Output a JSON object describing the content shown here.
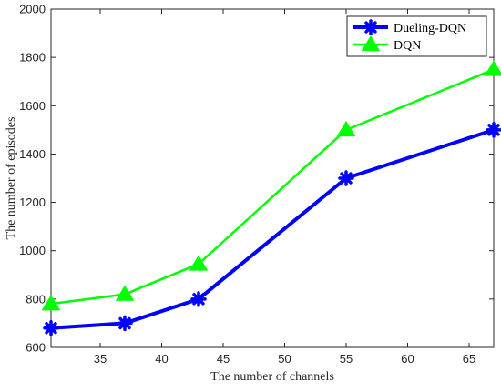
{
  "chart_data": {
    "type": "line",
    "xlabel": "The number of channels",
    "ylabel": "The number of episodes",
    "xlim": [
      31,
      67
    ],
    "ylim": [
      600,
      2000
    ],
    "xticks": [
      35,
      40,
      45,
      50,
      55,
      60,
      65
    ],
    "yticks": [
      600,
      800,
      1000,
      1200,
      1400,
      1600,
      1800,
      2000
    ],
    "grid": false,
    "legend_position": "top-right",
    "series": [
      {
        "name": "Dueling-DQN",
        "color": "#0000ff",
        "marker": "asterisk-star",
        "x": [
          31,
          37,
          43,
          55,
          67
        ],
        "y": [
          680,
          700,
          800,
          1300,
          1500
        ]
      },
      {
        "name": "DQN",
        "color": "#00ff00",
        "marker": "triangle",
        "x": [
          31,
          37,
          43,
          55,
          67
        ],
        "y": [
          780,
          820,
          945,
          1500,
          1750
        ]
      }
    ]
  }
}
